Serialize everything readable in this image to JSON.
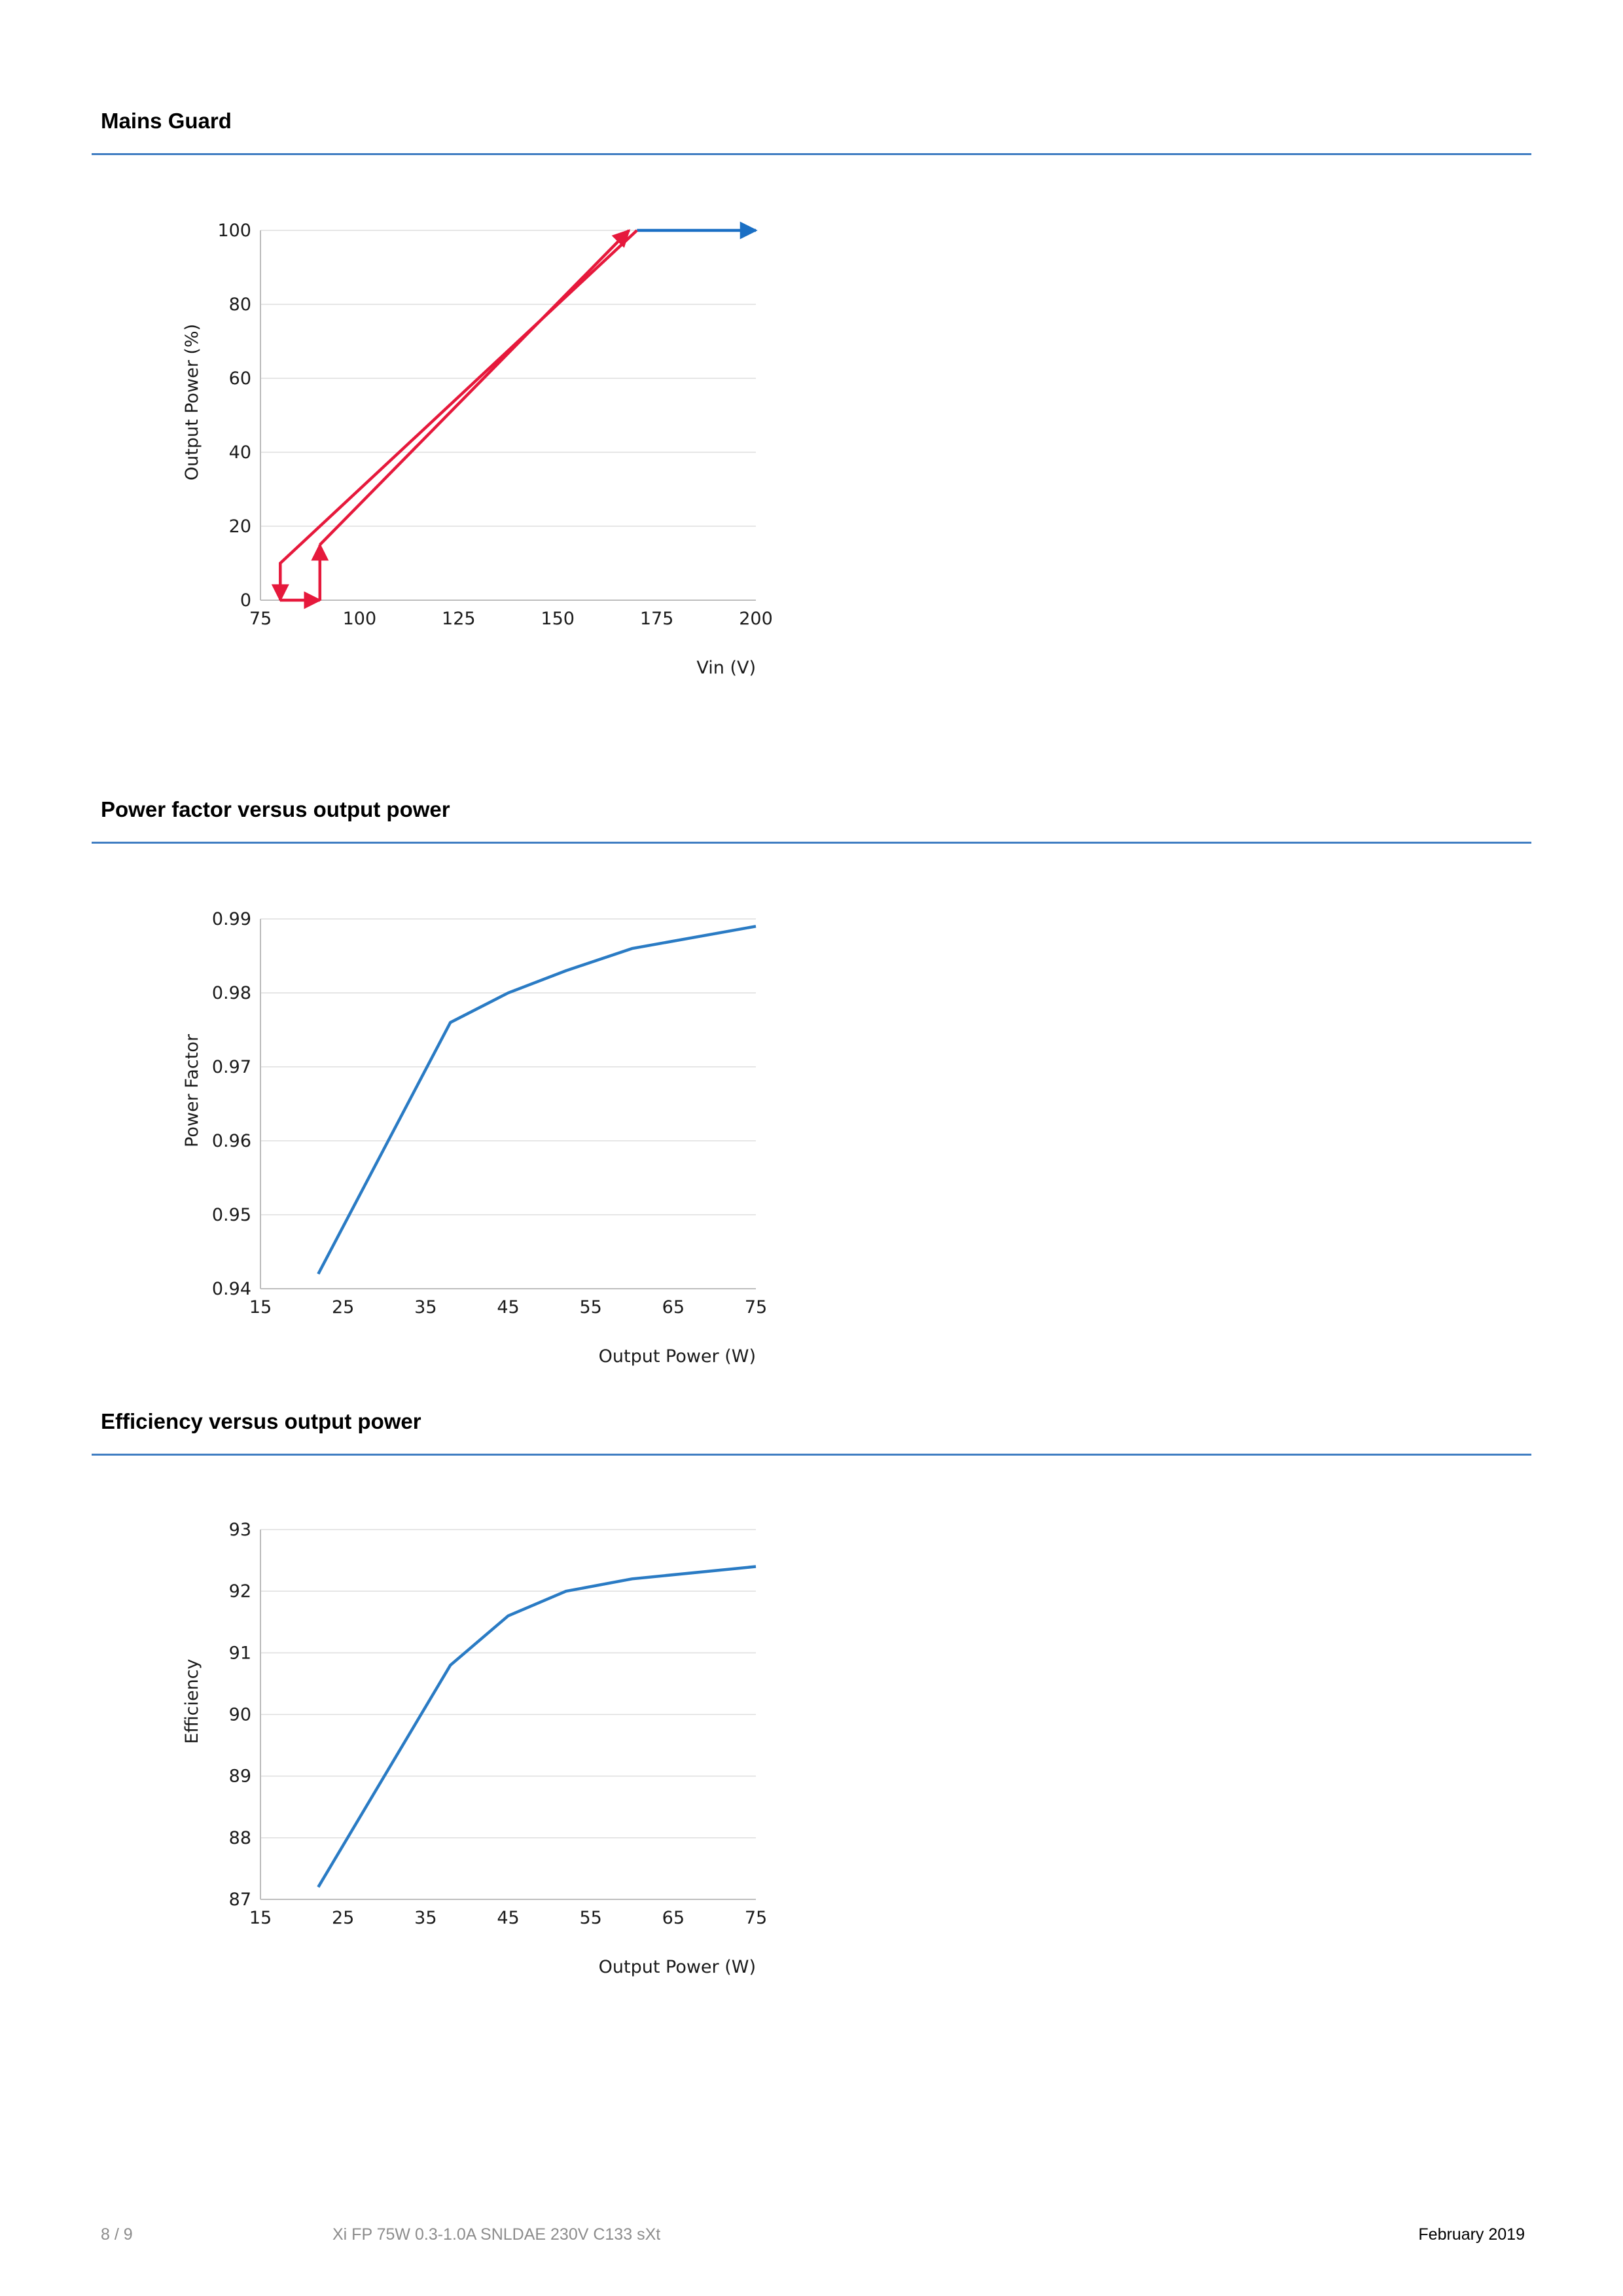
{
  "sections": [
    {
      "title": "Mains Guard"
    },
    {
      "title": "Power factor versus output power"
    },
    {
      "title": "Efficiency versus output power"
    }
  ],
  "chart_data": [
    {
      "type": "line",
      "xlabel": "Vin (V)",
      "ylabel": "Output Power (%)",
      "xlim": [
        75,
        200
      ],
      "ylim": [
        0,
        100
      ],
      "xticks": [
        75,
        100,
        125,
        150,
        175,
        200
      ],
      "yticks": [
        0,
        20,
        40,
        60,
        80,
        100
      ],
      "grid": true,
      "series": [
        {
          "color": "#1a6fc4",
          "arrow": "start",
          "x": [
            200,
            170
          ],
          "y": [
            100,
            100
          ]
        },
        {
          "color": "#e6193c",
          "arrow": "end",
          "x": [
            170,
            80,
            80
          ],
          "y": [
            100,
            10,
            0
          ]
        },
        {
          "color": "#e6193c",
          "arrow": "end",
          "x": [
            80,
            90
          ],
          "y": [
            0,
            0
          ]
        },
        {
          "color": "#e6193c",
          "arrow": "end",
          "x": [
            90,
            90
          ],
          "y": [
            0,
            15
          ]
        },
        {
          "color": "#e6193c",
          "arrow": "end",
          "x": [
            90,
            168
          ],
          "y": [
            15,
            100
          ]
        }
      ]
    },
    {
      "type": "line",
      "xlabel": "Output Power (W)",
      "ylabel": "Power Factor",
      "xlim": [
        15,
        75
      ],
      "ylim": [
        0.94,
        0.99
      ],
      "xticks": [
        15,
        25,
        35,
        45,
        55,
        65,
        75
      ],
      "yticks": [
        0.94,
        0.95,
        0.96,
        0.97,
        0.98,
        0.99
      ],
      "grid": true,
      "series": [
        {
          "color": "#2a7bc4",
          "x": [
            22,
            38,
            45,
            52,
            60,
            75
          ],
          "y": [
            0.942,
            0.976,
            0.98,
            0.983,
            0.986,
            0.989
          ]
        }
      ]
    },
    {
      "type": "line",
      "xlabel": "Output Power (W)",
      "ylabel": "Efficiency",
      "xlim": [
        15,
        75
      ],
      "ylim": [
        87,
        93
      ],
      "xticks": [
        15,
        25,
        35,
        45,
        55,
        65,
        75
      ],
      "yticks": [
        87,
        88,
        89,
        90,
        91,
        92,
        93
      ],
      "grid": true,
      "series": [
        {
          "color": "#2a7bc4",
          "x": [
            22,
            38,
            45,
            52,
            60,
            75
          ],
          "y": [
            87.2,
            90.8,
            91.6,
            92.0,
            92.2,
            92.4
          ]
        }
      ]
    }
  ],
  "footer": {
    "page": "8 / 9",
    "product": "Xi FP 75W 0.3-1.0A SNLDAE 230V C133 sXt",
    "date": "February 2019"
  }
}
